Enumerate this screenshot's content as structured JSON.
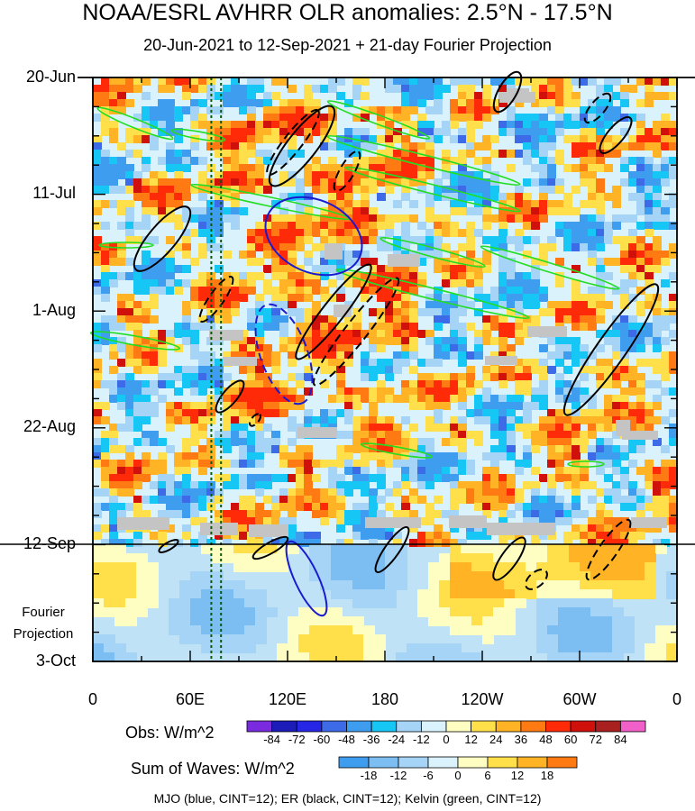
{
  "chart_data": {
    "type": "heatmap",
    "title": "NOAA/ESRL AVHRR OLR anomalies: 2.5°N - 17.5°N",
    "subtitle": "20-Jun-2021 to 12-Sep-2021 + 21-day Fourier Projection",
    "y_ticks": [
      "20-Jun",
      "11-Jul",
      "1-Aug",
      "22-Aug",
      "12-Sep",
      "3-Oct"
    ],
    "projection_label": [
      "Fourier",
      "Projection"
    ],
    "x_ticks": [
      "0",
      "60E",
      "120E",
      "180",
      "120W",
      "60W",
      "0"
    ],
    "x_range_deg_east": [
      0,
      360
    ],
    "obs_legend": {
      "title": "Obs: W/m^2",
      "levels": [
        "-84",
        "-72",
        "-60",
        "-48",
        "-36",
        "-24",
        "-12",
        "0",
        "12",
        "24",
        "36",
        "48",
        "60",
        "72",
        "84"
      ],
      "colors": [
        "#7a2be0",
        "#1c1cb8",
        "#2626e6",
        "#3d6be8",
        "#3f9df0",
        "#16c6f4",
        "#a5d4f6",
        "#d9f2fb",
        "#fffec2",
        "#ffe04a",
        "#ffb325",
        "#ff7a12",
        "#ff2a08",
        "#d0100a",
        "#a82020",
        "#f060c8"
      ]
    },
    "waves_legend": {
      "title": "Sum of Waves: W/m^2",
      "levels": [
        "-18",
        "-12",
        "-6",
        "0",
        "6",
        "12",
        "18"
      ],
      "colors": [
        "#3f9df0",
        "#7cbdf2",
        "#a5d4f6",
        "#d9f2fb",
        "#fffec2",
        "#ffe04a",
        "#ffb325",
        "#ff7a12"
      ]
    },
    "footnote": "MJO (blue, CINT=12); ER (black, CINT=12); Kelvin (green, CINT=12)",
    "contour_colors": {
      "mjo": "#1a1ad0",
      "er": "#000000",
      "kelvin": "#22dd22",
      "reference_lines": "#0a5a0a"
    },
    "reference_lines_deg_east": [
      73,
      79
    ]
  }
}
